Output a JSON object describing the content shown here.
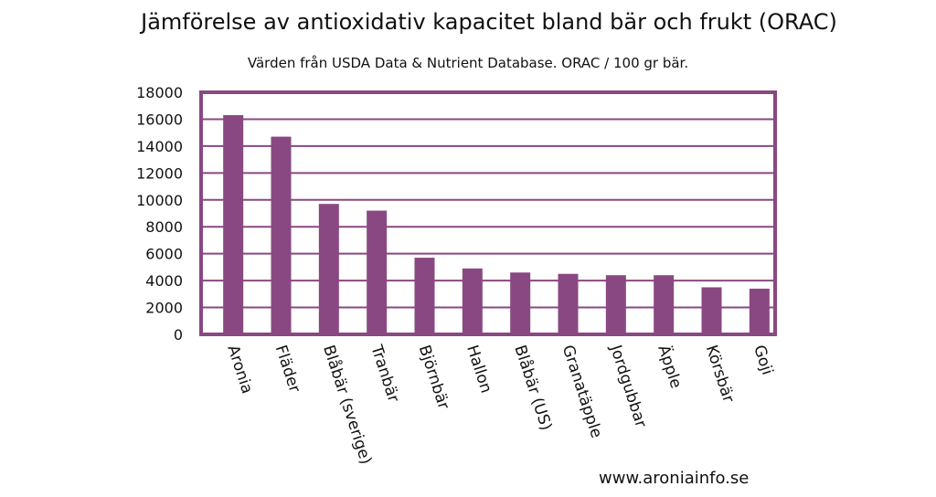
{
  "title": "Jämförelse av antioxidativ kapacitet bland bär och frukt (ORAC)",
  "subtitle": "Värden från USDA Data & Nutrient Database. ORAC / 100 gr bär.",
  "watermark": "www.aroniainfo.se",
  "colors": {
    "bar": "#8a4882",
    "frame": "#8a4882",
    "grid": "#8a4882",
    "text": "#111111",
    "background": "#ffffff"
  },
  "chart_data": {
    "type": "bar",
    "title": "Jämförelse av antioxidativ kapacitet bland bär och frukt (ORAC)",
    "subtitle": "Värden från USDA Data & Nutrient Database. ORAC / 100 gr bär.",
    "xlabel": "",
    "ylabel": "",
    "ylim": [
      0,
      18000
    ],
    "yticks": [
      0,
      2000,
      4000,
      6000,
      8000,
      10000,
      12000,
      14000,
      16000,
      18000
    ],
    "grid": true,
    "legend": "none",
    "categories": [
      "Aronia",
      "Fläder",
      "Blåbär (sverige)",
      "Tranbär",
      "Björnbär",
      "Hallon",
      "Blåbär (US)",
      "Granatäpple",
      "Jordgubbar",
      "Äpple",
      "Körsbär",
      "Goji"
    ],
    "values": [
      16300,
      14700,
      9700,
      9200,
      5700,
      4900,
      4600,
      4500,
      4400,
      4400,
      3500,
      3400
    ]
  }
}
